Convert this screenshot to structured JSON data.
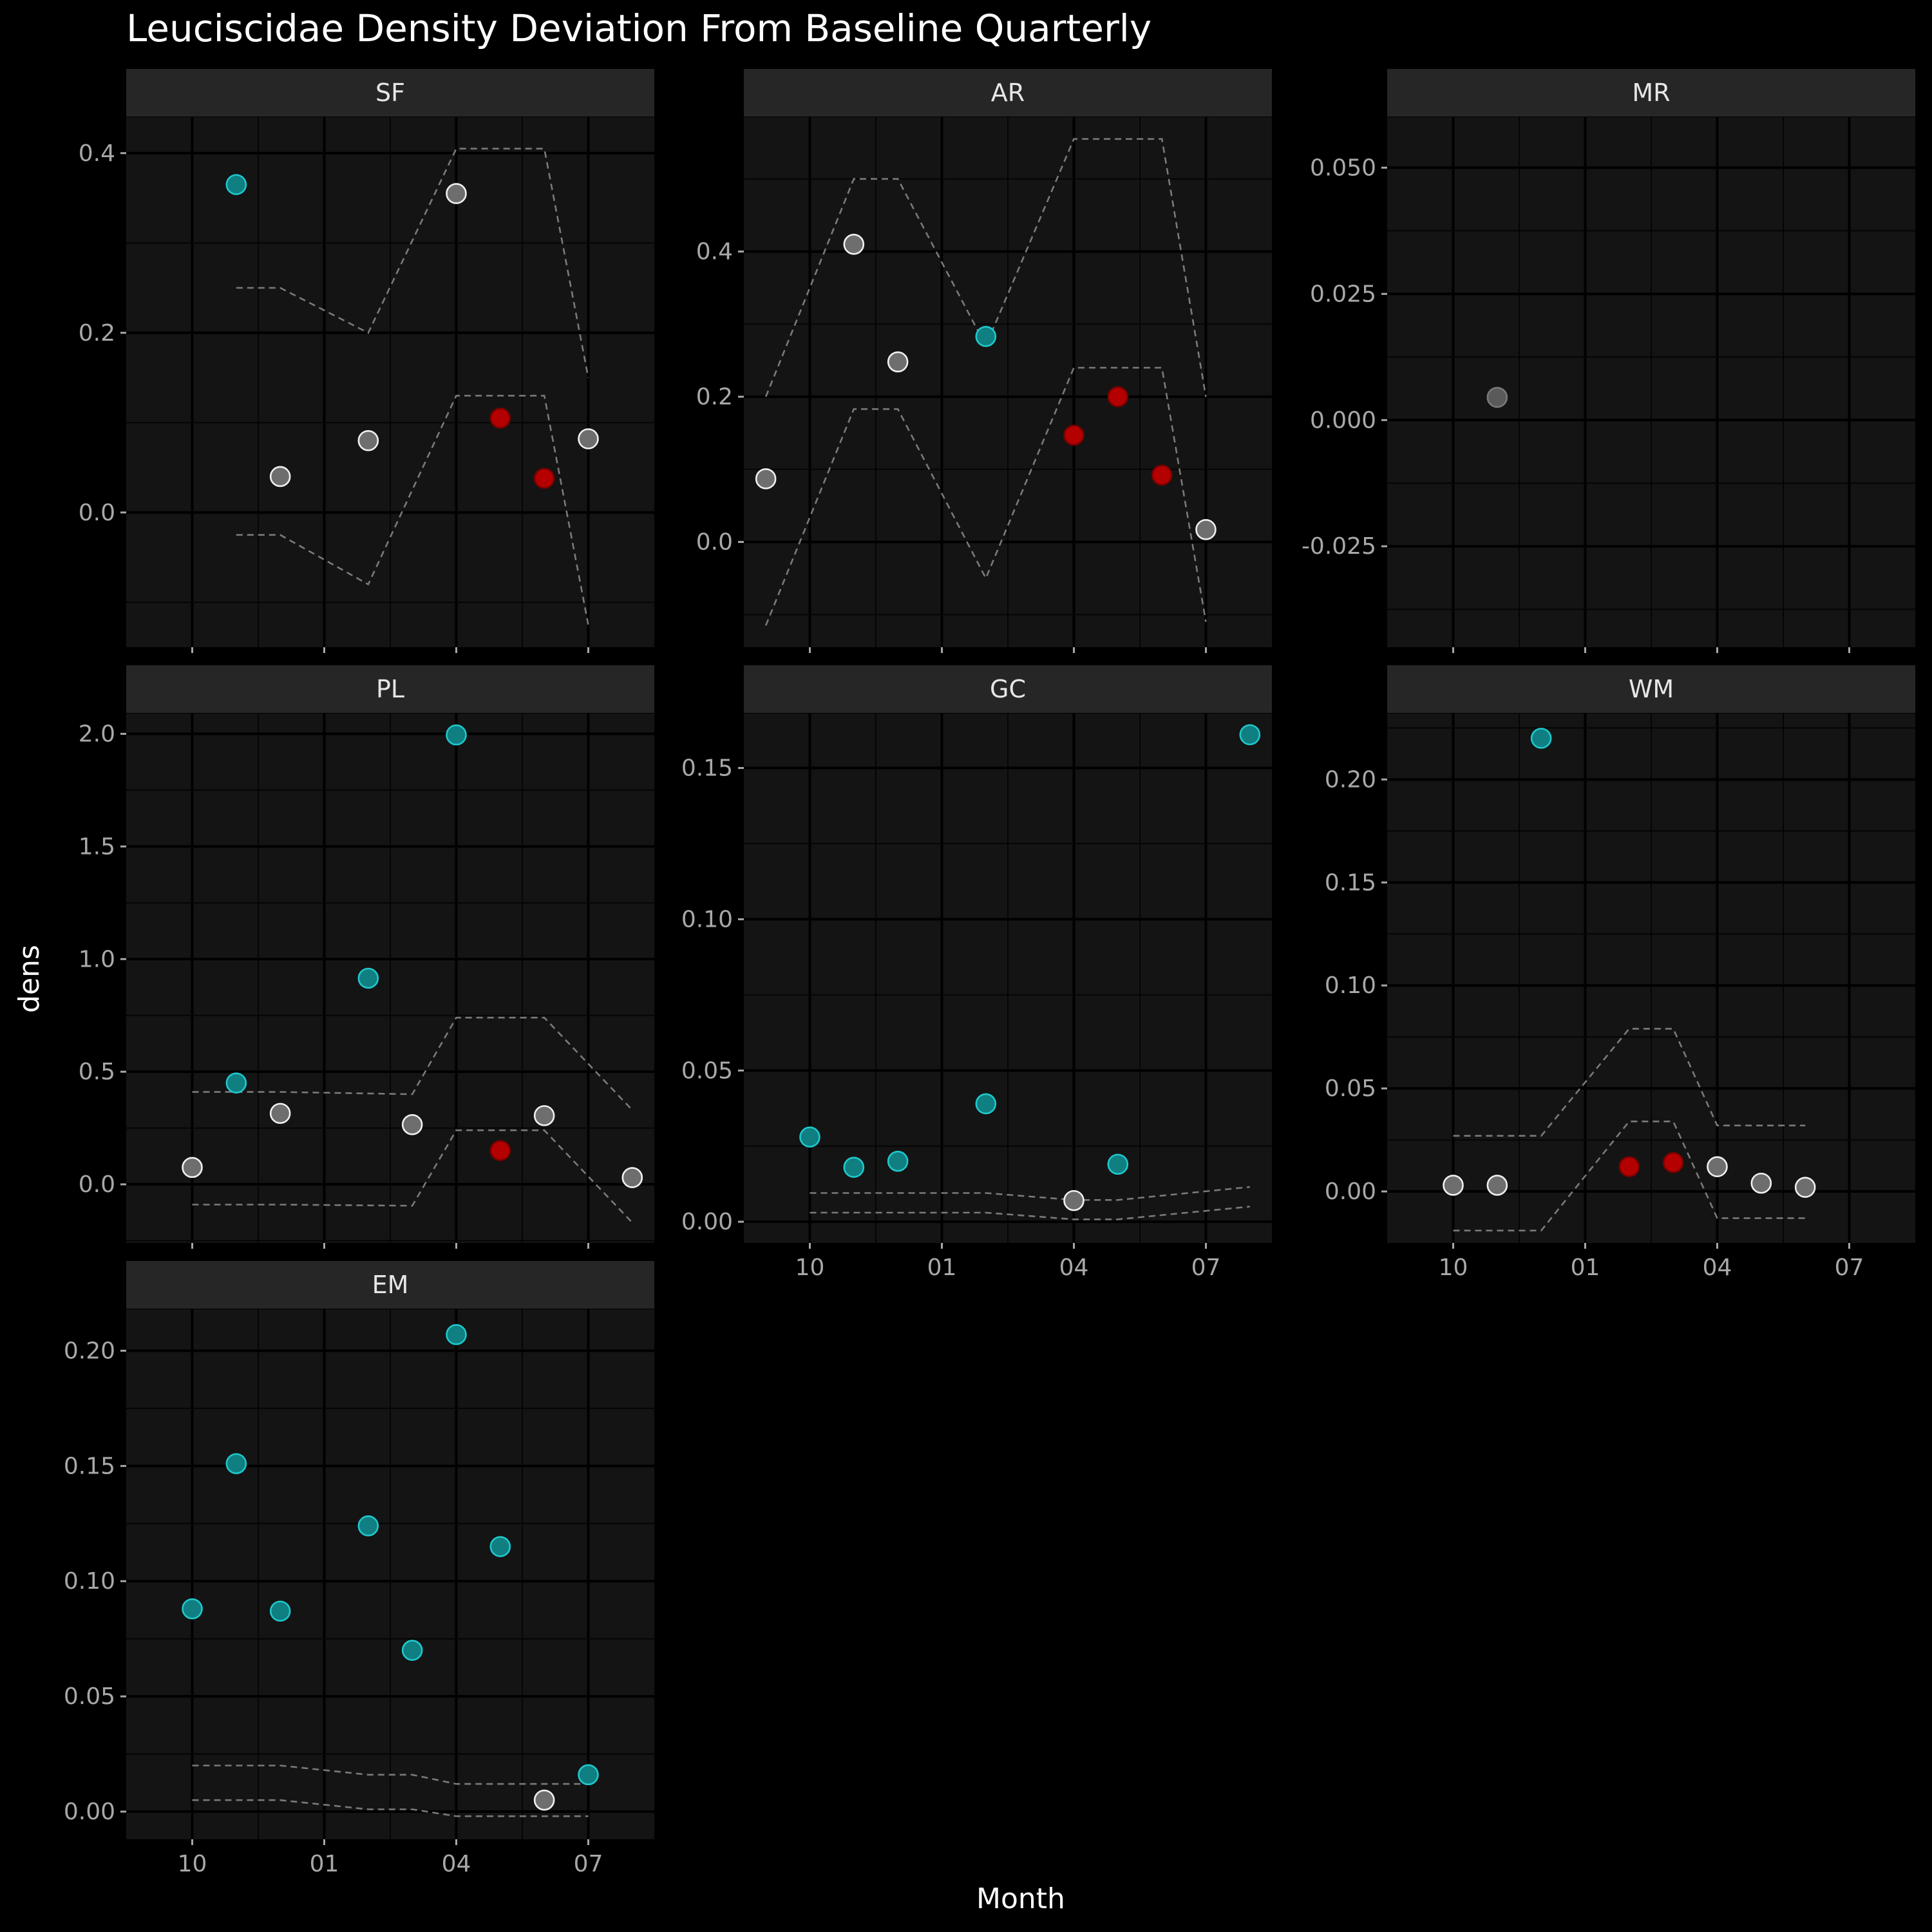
{
  "chart_data": {
    "type": "scatter",
    "title": "Leuciscidae Density Deviation From Baseline Quarterly",
    "xlabel": "Month",
    "ylabel": "dens",
    "x_unit": "months from October",
    "x_ticks": [
      {
        "x": 0,
        "label": "10"
      },
      {
        "x": 3,
        "label": "01"
      },
      {
        "x": 6,
        "label": "04"
      },
      {
        "x": 9,
        "label": "07"
      }
    ],
    "grid": true,
    "legend": "none",
    "colors": {
      "background": "#000000",
      "panel": "#141414",
      "strip": "#262626",
      "grid_major": "#000000",
      "grid_minor": "#050505",
      "band": "#7a7a7a",
      "above": "#1fc8cc",
      "within": "#c9c9c9",
      "below": "#b40000"
    },
    "panels": [
      {
        "label": "SF",
        "ylim": [
          -0.15,
          0.44
        ],
        "y_ticks": [
          {
            "v": 0.0,
            "label": "0.0"
          },
          {
            "v": 0.2,
            "label": "0.2"
          },
          {
            "v": 0.4,
            "label": "0.4"
          }
        ],
        "points": [
          {
            "x": 1,
            "y": 0.365,
            "status": "above"
          },
          {
            "x": 2,
            "y": 0.04,
            "status": "within"
          },
          {
            "x": 4,
            "y": 0.08,
            "status": "within"
          },
          {
            "x": 6,
            "y": 0.355,
            "status": "within"
          },
          {
            "x": 7,
            "y": 0.105,
            "status": "below"
          },
          {
            "x": 8,
            "y": 0.038,
            "status": "below"
          },
          {
            "x": 9,
            "y": 0.082,
            "status": "within"
          }
        ],
        "band_upper": [
          [
            1,
            0.25
          ],
          [
            2,
            0.25
          ],
          [
            4,
            0.2
          ],
          [
            6,
            0.405
          ],
          [
            8,
            0.405
          ],
          [
            9,
            0.15
          ]
        ],
        "band_lower": [
          [
            1,
            -0.025
          ],
          [
            2,
            -0.025
          ],
          [
            4,
            -0.08
          ],
          [
            6,
            0.13
          ],
          [
            8,
            0.13
          ],
          [
            9,
            -0.125
          ]
        ]
      },
      {
        "label": "AR",
        "ylim": [
          -0.145,
          0.585
        ],
        "y_ticks": [
          {
            "v": 0.0,
            "label": "0.0"
          },
          {
            "v": 0.2,
            "label": "0.2"
          },
          {
            "v": 0.4,
            "label": "0.4"
          }
        ],
        "points": [
          {
            "x": -1,
            "y": 0.087,
            "status": "within"
          },
          {
            "x": 1,
            "y": 0.41,
            "status": "within"
          },
          {
            "x": 2,
            "y": 0.248,
            "status": "within"
          },
          {
            "x": 4,
            "y": 0.283,
            "status": "above"
          },
          {
            "x": 6,
            "y": 0.147,
            "status": "below"
          },
          {
            "x": 7,
            "y": 0.2,
            "status": "below"
          },
          {
            "x": 8,
            "y": 0.092,
            "status": "below"
          },
          {
            "x": 9,
            "y": 0.017,
            "status": "within"
          }
        ],
        "band_upper": [
          [
            -1,
            0.2
          ],
          [
            1,
            0.5
          ],
          [
            2,
            0.5
          ],
          [
            4,
            0.27
          ],
          [
            6,
            0.555
          ],
          [
            8,
            0.555
          ],
          [
            9,
            0.2
          ]
        ],
        "band_lower": [
          [
            -1,
            -0.115
          ],
          [
            1,
            0.183
          ],
          [
            2,
            0.183
          ],
          [
            4,
            -0.05
          ],
          [
            6,
            0.24
          ],
          [
            8,
            0.24
          ],
          [
            9,
            -0.11
          ]
        ]
      },
      {
        "label": "MR",
        "ylim": [
          -0.045,
          0.06
        ],
        "y_ticks": [
          {
            "v": -0.025,
            "label": "-0.025"
          },
          {
            "v": 0.0,
            "label": "0.000"
          },
          {
            "v": 0.025,
            "label": "0.025"
          },
          {
            "v": 0.05,
            "label": "0.050"
          }
        ],
        "points": [
          {
            "x": 1,
            "y": 0.0045,
            "status": "within_nodata"
          }
        ],
        "band_upper": [],
        "band_lower": []
      },
      {
        "label": "PL",
        "ylim": [
          -0.26,
          2.09
        ],
        "y_ticks": [
          {
            "v": 0.0,
            "label": "0.0"
          },
          {
            "v": 0.5,
            "label": "0.5"
          },
          {
            "v": 1.0,
            "label": "1.0"
          },
          {
            "v": 1.5,
            "label": "1.5"
          },
          {
            "v": 2.0,
            "label": "2.0"
          }
        ],
        "points": [
          {
            "x": 0,
            "y": 0.075,
            "status": "within"
          },
          {
            "x": 1,
            "y": 0.45,
            "status": "above"
          },
          {
            "x": 2,
            "y": 0.315,
            "status": "within"
          },
          {
            "x": 4,
            "y": 0.915,
            "status": "above"
          },
          {
            "x": 5,
            "y": 0.265,
            "status": "within"
          },
          {
            "x": 6,
            "y": 1.995,
            "status": "above"
          },
          {
            "x": 7,
            "y": 0.15,
            "status": "below"
          },
          {
            "x": 8,
            "y": 0.305,
            "status": "within"
          },
          {
            "x": 10,
            "y": 0.03,
            "status": "within"
          }
        ],
        "band_upper": [
          [
            0,
            0.41
          ],
          [
            1,
            0.41
          ],
          [
            2,
            0.41
          ],
          [
            5,
            0.4
          ],
          [
            6,
            0.74
          ],
          [
            8,
            0.74
          ],
          [
            10,
            0.33
          ]
        ],
        "band_lower": [
          [
            0,
            -0.09
          ],
          [
            1,
            -0.09
          ],
          [
            2,
            -0.09
          ],
          [
            5,
            -0.095
          ],
          [
            6,
            0.24
          ],
          [
            8,
            0.24
          ],
          [
            10,
            -0.17
          ]
        ]
      },
      {
        "label": "GC",
        "ylim": [
          -0.007,
          0.168
        ],
        "y_ticks": [
          {
            "v": 0.0,
            "label": "0.00"
          },
          {
            "v": 0.05,
            "label": "0.05"
          },
          {
            "v": 0.1,
            "label": "0.10"
          },
          {
            "v": 0.15,
            "label": "0.15"
          }
        ],
        "points": [
          {
            "x": 0,
            "y": 0.028,
            "status": "above"
          },
          {
            "x": 1,
            "y": 0.018,
            "status": "above"
          },
          {
            "x": 2,
            "y": 0.02,
            "status": "above"
          },
          {
            "x": 4,
            "y": 0.039,
            "status": "above"
          },
          {
            "x": 6,
            "y": 0.007,
            "status": "within"
          },
          {
            "x": 7,
            "y": 0.019,
            "status": "above"
          },
          {
            "x": 10,
            "y": 0.161,
            "status": "above"
          }
        ],
        "band_upper": [
          [
            0,
            0.0095
          ],
          [
            4,
            0.0095
          ],
          [
            6,
            0.0072
          ],
          [
            7,
            0.0072
          ],
          [
            10,
            0.0115
          ]
        ],
        "band_lower": [
          [
            0,
            0.003
          ],
          [
            4,
            0.003
          ],
          [
            6,
            0.0008
          ],
          [
            7,
            0.0008
          ],
          [
            10,
            0.005
          ]
        ]
      },
      {
        "label": "WM",
        "ylim": [
          -0.025,
          0.232
        ],
        "y_ticks": [
          {
            "v": 0.0,
            "label": "0.00"
          },
          {
            "v": 0.05,
            "label": "0.05"
          },
          {
            "v": 0.1,
            "label": "0.10"
          },
          {
            "v": 0.15,
            "label": "0.15"
          },
          {
            "v": 0.2,
            "label": "0.20"
          }
        ],
        "points": [
          {
            "x": 0,
            "y": 0.003,
            "status": "within"
          },
          {
            "x": 1,
            "y": 0.003,
            "status": "within"
          },
          {
            "x": 2,
            "y": 0.22,
            "status": "above"
          },
          {
            "x": 4,
            "y": 0.012,
            "status": "below"
          },
          {
            "x": 5,
            "y": 0.014,
            "status": "below"
          },
          {
            "x": 6,
            "y": 0.012,
            "status": "within"
          },
          {
            "x": 7,
            "y": 0.004,
            "status": "within"
          },
          {
            "x": 8,
            "y": 0.002,
            "status": "within"
          }
        ],
        "band_upper": [
          [
            0,
            0.027
          ],
          [
            2,
            0.027
          ],
          [
            4,
            0.079
          ],
          [
            5,
            0.079
          ],
          [
            6,
            0.032
          ],
          [
            8,
            0.032
          ]
        ],
        "band_lower": [
          [
            0,
            -0.019
          ],
          [
            2,
            -0.019
          ],
          [
            4,
            0.034
          ],
          [
            5,
            0.034
          ],
          [
            6,
            -0.013
          ],
          [
            8,
            -0.013
          ]
        ]
      },
      {
        "label": "EM",
        "ylim": [
          -0.012,
          0.218
        ],
        "y_ticks": [
          {
            "v": 0.0,
            "label": "0.00"
          },
          {
            "v": 0.05,
            "label": "0.05"
          },
          {
            "v": 0.1,
            "label": "0.10"
          },
          {
            "v": 0.15,
            "label": "0.15"
          },
          {
            "v": 0.2,
            "label": "0.20"
          }
        ],
        "points": [
          {
            "x": 0,
            "y": 0.088,
            "status": "above"
          },
          {
            "x": 1,
            "y": 0.151,
            "status": "above"
          },
          {
            "x": 2,
            "y": 0.087,
            "status": "above"
          },
          {
            "x": 4,
            "y": 0.124,
            "status": "above"
          },
          {
            "x": 5,
            "y": 0.07,
            "status": "above"
          },
          {
            "x": 6,
            "y": 0.207,
            "status": "above"
          },
          {
            "x": 7,
            "y": 0.115,
            "status": "above"
          },
          {
            "x": 8,
            "y": 0.005,
            "status": "within"
          },
          {
            "x": 9,
            "y": 0.016,
            "status": "above"
          }
        ],
        "band_upper": [
          [
            0,
            0.02
          ],
          [
            2,
            0.02
          ],
          [
            4,
            0.016
          ],
          [
            5,
            0.016
          ],
          [
            6,
            0.012
          ],
          [
            9,
            0.012
          ]
        ],
        "band_lower": [
          [
            0,
            0.005
          ],
          [
            2,
            0.005
          ],
          [
            4,
            0.001
          ],
          [
            5,
            0.001
          ],
          [
            6,
            -0.002
          ],
          [
            9,
            -0.002
          ]
        ]
      }
    ]
  }
}
